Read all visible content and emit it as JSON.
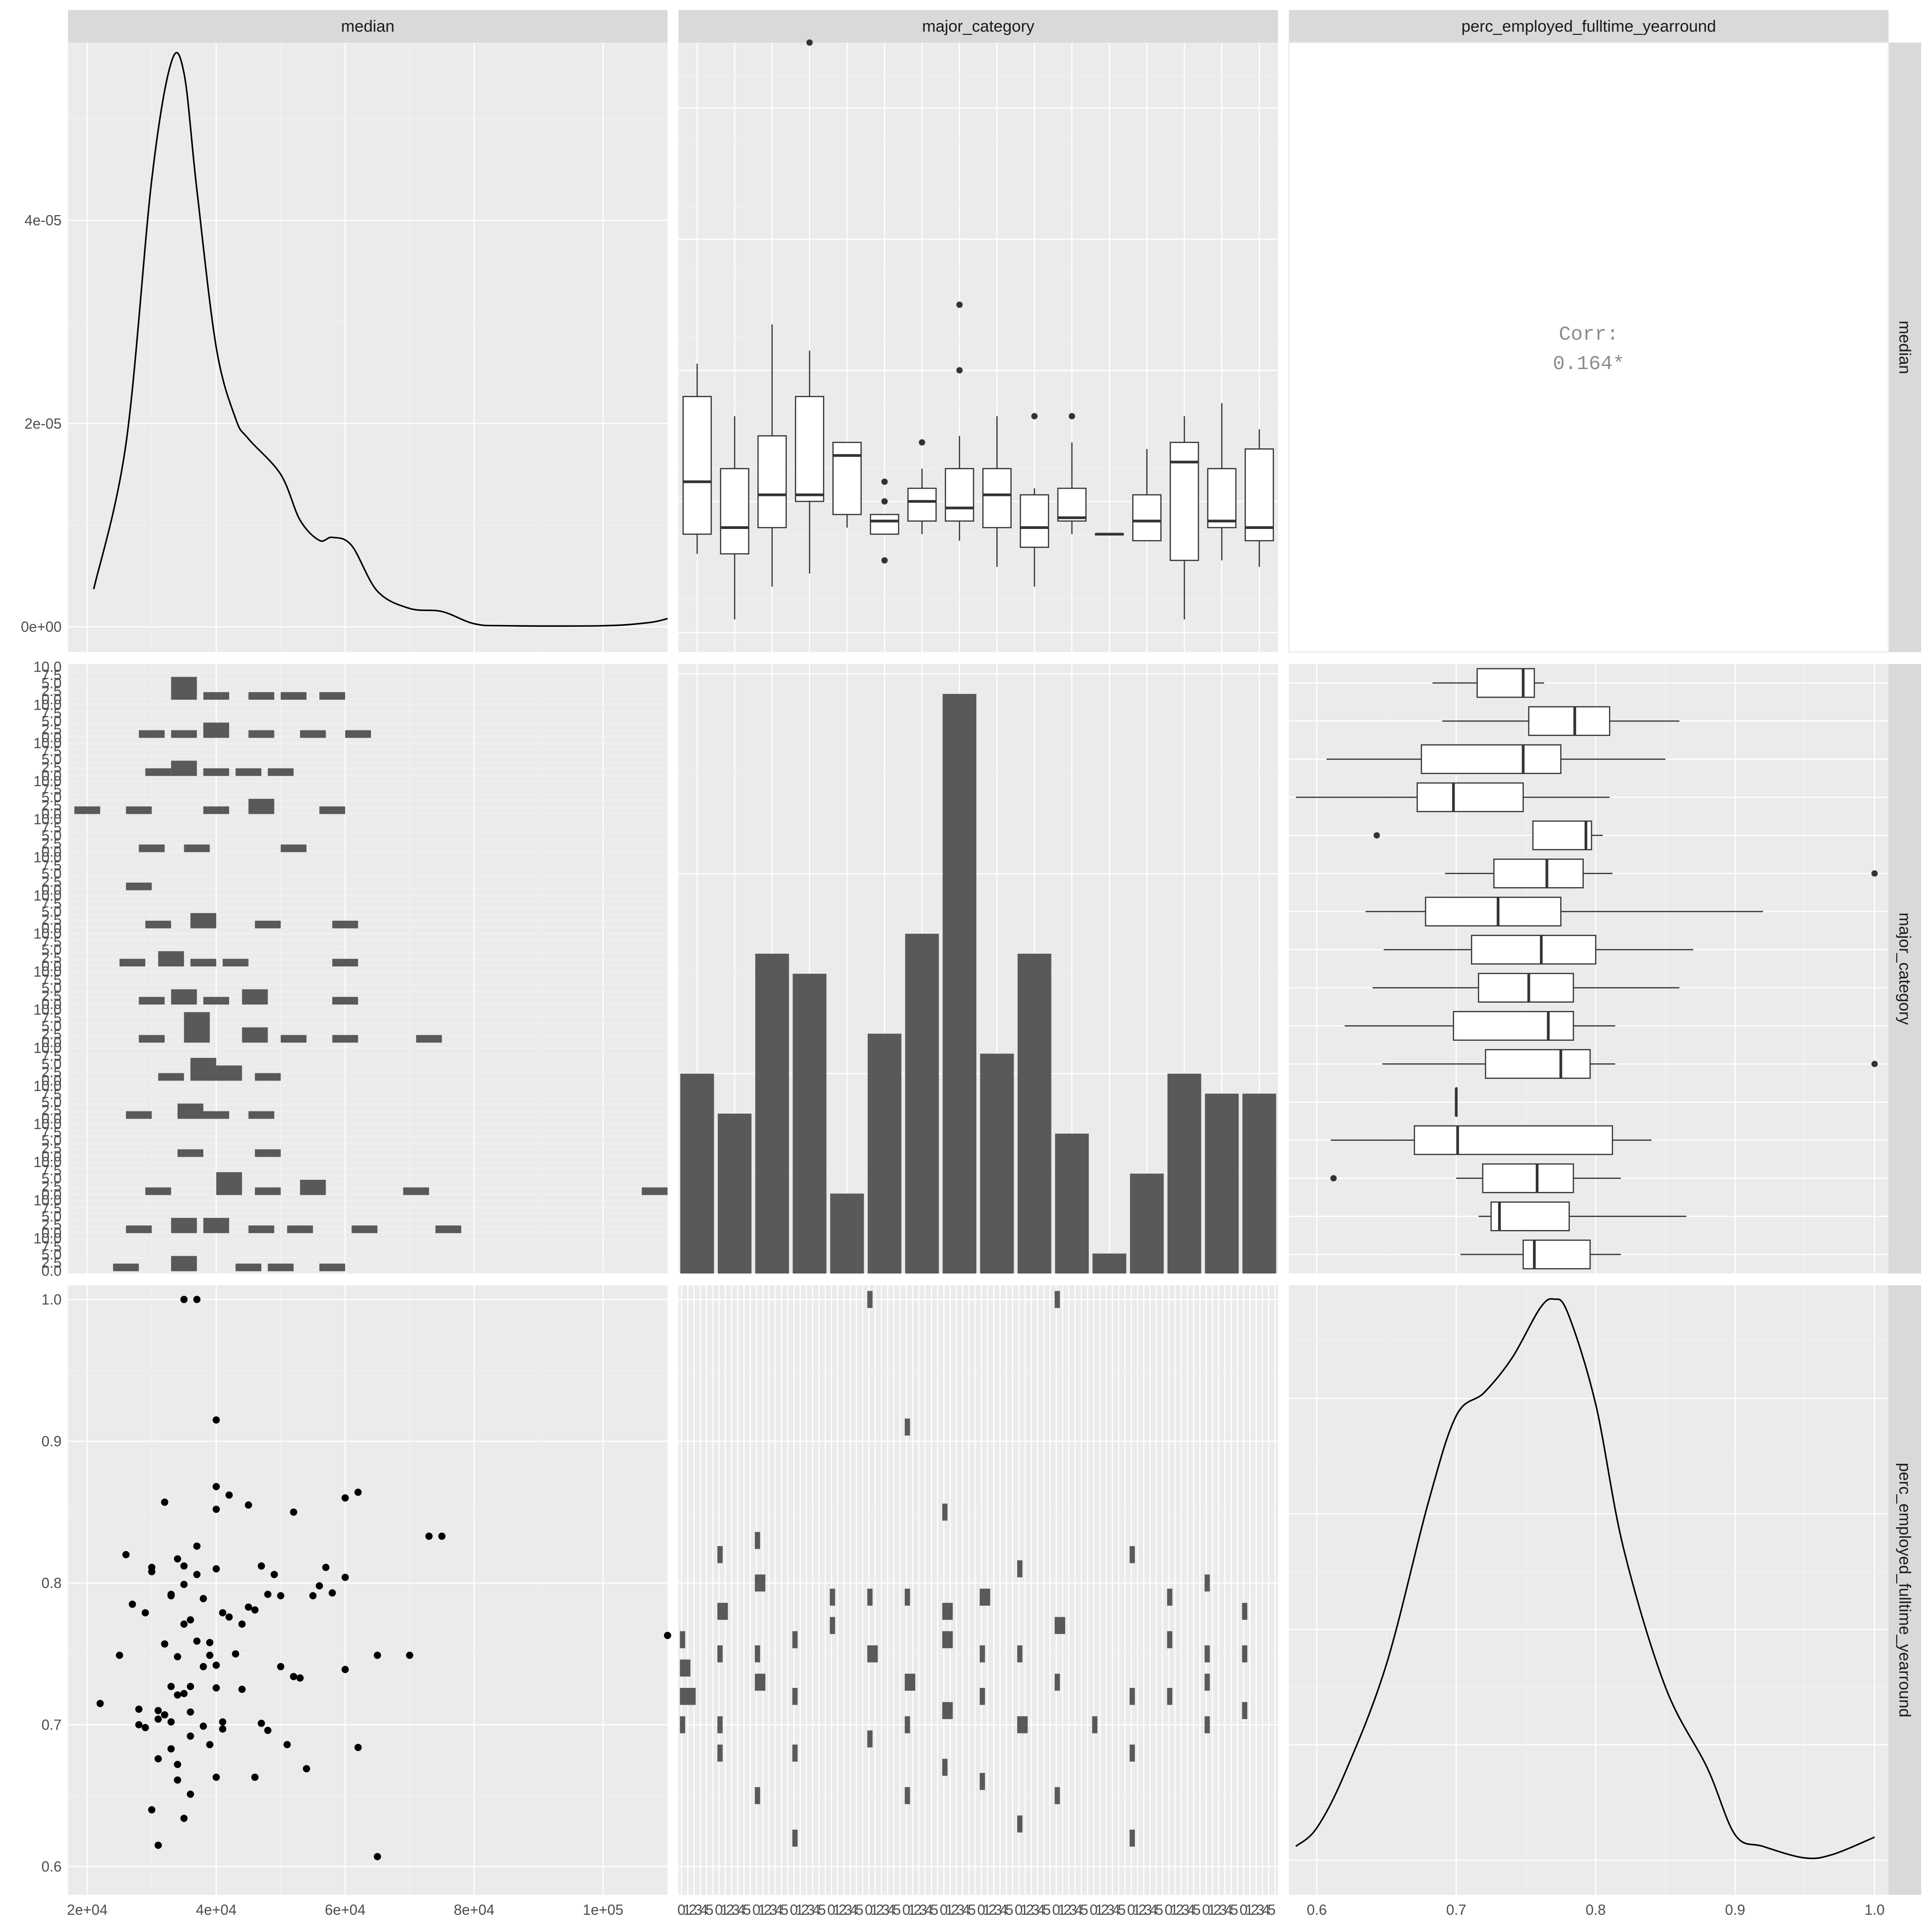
{
  "strips": {
    "top": [
      "median",
      "major_category",
      "perc_employed_fulltime_yearround"
    ],
    "right": [
      "median",
      "major_category",
      "perc_employed_fulltime_yearround"
    ]
  },
  "correlation": {
    "label": "Corr:",
    "value": "0.164*"
  },
  "axis": {
    "median_ticks": [
      "2e+04",
      "4e+04",
      "6e+04",
      "8e+04",
      "1e+05"
    ],
    "median_tick_values": [
      20000,
      40000,
      60000,
      80000,
      100000
    ],
    "median_range": [
      17000,
      110000
    ],
    "density_ticks": [
      "0e+00",
      "2e-05",
      "4e-05"
    ],
    "density_tick_values": [
      0,
      2e-05,
      4e-05
    ],
    "density_range": [
      -2.5e-06,
      5.75e-05
    ],
    "perc_ticks": [
      "0.6",
      "0.7",
      "0.8",
      "0.9",
      "1.0"
    ],
    "perc_tick_values": [
      0.6,
      0.7,
      0.8,
      0.9,
      1.0
    ],
    "perc_range": [
      0.58,
      1.01
    ],
    "facet_count_ticks": [
      "0.0",
      "2.5",
      "5.0",
      "7.5",
      "10.0"
    ],
    "facet_count_tick_values": [
      0,
      2.5,
      5,
      7.5,
      10
    ],
    "bottom_mid_tick_cycle": [
      "0",
      "1",
      "2",
      "3",
      "4",
      "5"
    ]
  },
  "chart_data": {
    "type": "pairs",
    "variables": [
      "median",
      "major_category",
      "perc_employed_fulltime_yearround"
    ],
    "n_categories": 16,
    "median_density": {
      "x": [
        21000,
        26000,
        30000,
        33000,
        35000,
        37000,
        40000,
        43000,
        45000,
        50000,
        53000,
        56000,
        58000,
        61000,
        65000,
        70000,
        75000,
        80000,
        85000,
        100000,
        107000,
        110000
      ],
      "y": [
        3.7e-06,
        1.8e-05,
        4.4e-05,
        5.55e-05,
        5.45e-05,
        4.3e-05,
        2.75e-05,
        2.05e-05,
        1.85e-05,
        1.5e-05,
        1.05e-05,
        8.5e-06,
        8.8e-06,
        8e-06,
        3.5e-06,
        1.8e-06,
        1.5e-06,
        3e-07,
        1e-07,
        1e-07,
        4e-07,
        8e-07
      ]
    },
    "perc_density": {
      "x": [
        0.585,
        0.6,
        0.62,
        0.65,
        0.68,
        0.7,
        0.72,
        0.74,
        0.76,
        0.77,
        0.78,
        0.8,
        0.82,
        0.85,
        0.88,
        0.9,
        0.92,
        0.95,
        0.97,
        1.0
      ],
      "y": [
        0.12,
        0.28,
        0.75,
        1.7,
        3.1,
        3.85,
        4.05,
        4.35,
        4.78,
        4.86,
        4.74,
        3.95,
        2.7,
        1.5,
        0.8,
        0.22,
        0.12,
        0.02,
        0.05,
        0.2
      ]
    },
    "perc_density_range": [
      -0.3,
      4.98
    ],
    "category_counts": [
      10,
      8,
      16,
      15,
      4,
      12,
      17,
      29,
      11,
      16,
      7,
      1,
      5,
      10,
      9,
      9
    ],
    "category_count_range": [
      0,
      30.5
    ],
    "median_by_category": [
      {
        "q1": 35000,
        "med": 43000,
        "q3": 56000,
        "lo": 32000,
        "hi": 61000,
        "out": []
      },
      {
        "q1": 32000,
        "med": 36000,
        "q3": 45000,
        "lo": 22000,
        "hi": 53000,
        "out": []
      },
      {
        "q1": 36000,
        "med": 41000,
        "q3": 50000,
        "lo": 27000,
        "hi": 67000,
        "out": []
      },
      {
        "q1": 40000,
        "med": 41000,
        "q3": 56000,
        "lo": 29000,
        "hi": 63000,
        "out": [
          110000
        ]
      },
      {
        "q1": 38000,
        "med": 47000,
        "q3": 49000,
        "lo": 36000,
        "hi": 49000,
        "out": []
      },
      {
        "q1": 35000,
        "med": 37000,
        "q3": 38000,
        "lo": 35000,
        "hi": 38000,
        "out": [
          40000,
          43000,
          31000
        ]
      },
      {
        "q1": 37000,
        "med": 40000,
        "q3": 42000,
        "lo": 35000,
        "hi": 45000,
        "out": [
          49000
        ]
      },
      {
        "q1": 37000,
        "med": 39000,
        "q3": 45000,
        "lo": 34000,
        "hi": 50000,
        "out": [
          70000,
          60000
        ]
      },
      {
        "q1": 36000,
        "med": 41000,
        "q3": 45000,
        "lo": 30000,
        "hi": 53000,
        "out": []
      },
      {
        "q1": 33000,
        "med": 36000,
        "q3": 41000,
        "lo": 27000,
        "hi": 42000,
        "out": [
          53000
        ]
      },
      {
        "q1": 37000,
        "med": 37500,
        "q3": 42000,
        "lo": 35000,
        "hi": 49000,
        "out": [
          53000
        ]
      },
      {
        "q1": 35000,
        "med": 35000,
        "q3": 35000,
        "lo": 35000,
        "hi": 35000,
        "out": []
      },
      {
        "q1": 34000,
        "med": 37000,
        "q3": 41000,
        "lo": 34000,
        "hi": 48000,
        "out": []
      },
      {
        "q1": 31000,
        "med": 46000,
        "q3": 49000,
        "lo": 22000,
        "hi": 53000,
        "out": []
      },
      {
        "q1": 36000,
        "med": 37000,
        "q3": 45000,
        "lo": 31000,
        "hi": 55000,
        "out": []
      },
      {
        "q1": 34000,
        "med": 36000,
        "q3": 48000,
        "lo": 30000,
        "hi": 51000,
        "out": []
      }
    ],
    "perc_by_category": [
      {
        "q1": 0.715,
        "med": 0.748,
        "q3": 0.756,
        "lo": 0.683,
        "hi": 0.763,
        "out": []
      },
      {
        "q1": 0.752,
        "med": 0.785,
        "q3": 0.81,
        "lo": 0.69,
        "hi": 0.86,
        "out": []
      },
      {
        "q1": 0.675,
        "med": 0.748,
        "q3": 0.775,
        "lo": 0.607,
        "hi": 0.85,
        "out": []
      },
      {
        "q1": 0.672,
        "med": 0.698,
        "q3": 0.748,
        "lo": 0.585,
        "hi": 0.81,
        "out": []
      },
      {
        "q1": 0.755,
        "med": 0.793,
        "q3": 0.797,
        "lo": 0.755,
        "hi": 0.805,
        "out": [
          0.643
        ]
      },
      {
        "q1": 0.727,
        "med": 0.765,
        "q3": 0.791,
        "lo": 0.692,
        "hi": 0.812,
        "out": [
          1.0
        ]
      },
      {
        "q1": 0.678,
        "med": 0.73,
        "q3": 0.775,
        "lo": 0.635,
        "hi": 0.92,
        "out": []
      },
      {
        "q1": 0.711,
        "med": 0.761,
        "q3": 0.8,
        "lo": 0.648,
        "hi": 0.87,
        "out": []
      },
      {
        "q1": 0.716,
        "med": 0.752,
        "q3": 0.784,
        "lo": 0.64,
        "hi": 0.86,
        "out": []
      },
      {
        "q1": 0.698,
        "med": 0.766,
        "q3": 0.784,
        "lo": 0.62,
        "hi": 0.814,
        "out": []
      },
      {
        "q1": 0.721,
        "med": 0.775,
        "q3": 0.796,
        "lo": 0.647,
        "hi": 0.814,
        "out": [
          1.0
        ]
      },
      {
        "q1": 0.7,
        "med": 0.7,
        "q3": 0.7,
        "lo": 0.7,
        "hi": 0.7,
        "out": []
      },
      {
        "q1": 0.67,
        "med": 0.701,
        "q3": 0.812,
        "lo": 0.61,
        "hi": 0.84,
        "out": []
      },
      {
        "q1": 0.719,
        "med": 0.758,
        "q3": 0.784,
        "lo": 0.7,
        "hi": 0.818,
        "out": [
          0.612
        ]
      },
      {
        "q1": 0.725,
        "med": 0.731,
        "q3": 0.781,
        "lo": 0.716,
        "hi": 0.865,
        "out": []
      },
      {
        "q1": 0.748,
        "med": 0.756,
        "q3": 0.796,
        "lo": 0.703,
        "hi": 0.818,
        "out": []
      }
    ],
    "median_hist_by_category": [
      [
        [
          35000,
          3
        ],
        [
          40000,
          1
        ],
        [
          47000,
          1
        ],
        [
          52000,
          1
        ],
        [
          58000,
          1
        ]
      ],
      [
        [
          30000,
          1
        ],
        [
          35000,
          1
        ],
        [
          40000,
          2
        ],
        [
          47000,
          1
        ],
        [
          55000,
          1
        ],
        [
          62000,
          1
        ]
      ],
      [
        [
          31000,
          1
        ],
        [
          35000,
          2
        ],
        [
          40000,
          1
        ],
        [
          45000,
          1
        ],
        [
          50000,
          1
        ]
      ],
      [
        [
          20000,
          1
        ],
        [
          28000,
          1
        ],
        [
          40000,
          1
        ],
        [
          47000,
          2
        ],
        [
          58000,
          1
        ]
      ],
      [
        [
          30000,
          1
        ],
        [
          37000,
          1
        ],
        [
          52000,
          1
        ]
      ],
      [
        [
          28000,
          1
        ]
      ],
      [
        [
          31000,
          1
        ],
        [
          38000,
          2
        ],
        [
          48000,
          1
        ],
        [
          60000,
          1
        ]
      ],
      [
        [
          27000,
          1
        ],
        [
          33000,
          2
        ],
        [
          38000,
          1
        ],
        [
          43000,
          1
        ],
        [
          60000,
          1
        ]
      ],
      [
        [
          30000,
          1
        ],
        [
          35000,
          2
        ],
        [
          40000,
          1
        ],
        [
          46000,
          2
        ],
        [
          60000,
          1
        ]
      ],
      [
        [
          30000,
          1
        ],
        [
          37000,
          4
        ],
        [
          46000,
          2
        ],
        [
          52000,
          1
        ],
        [
          60000,
          1
        ],
        [
          73000,
          1
        ]
      ],
      [
        [
          33000,
          1
        ],
        [
          38000,
          3
        ],
        [
          42000,
          2
        ],
        [
          48000,
          1
        ]
      ],
      [
        [
          28000,
          1
        ],
        [
          36000,
          2
        ],
        [
          40000,
          1
        ],
        [
          47000,
          1
        ]
      ],
      [
        [
          36000,
          1
        ],
        [
          48000,
          1
        ]
      ],
      [
        [
          31000,
          1
        ],
        [
          42000,
          3
        ],
        [
          48000,
          1
        ],
        [
          55000,
          2
        ],
        [
          71000,
          1
        ],
        [
          108000,
          1
        ]
      ],
      [
        [
          28000,
          1
        ],
        [
          35000,
          2
        ],
        [
          40000,
          2
        ],
        [
          47000,
          1
        ],
        [
          53000,
          1
        ],
        [
          63000,
          1
        ],
        [
          76000,
          1
        ]
      ],
      [
        [
          26000,
          1
        ],
        [
          35000,
          2
        ],
        [
          45000,
          1
        ],
        [
          50000,
          1
        ],
        [
          58000,
          1
        ]
      ]
    ],
    "perc_hist_by_category": [
      [
        [
          0.7,
          1
        ],
        [
          0.72,
          3
        ],
        [
          0.74,
          2
        ],
        [
          0.76,
          1
        ]
      ],
      [
        [
          0.68,
          1
        ],
        [
          0.7,
          1
        ],
        [
          0.75,
          1
        ],
        [
          0.78,
          2
        ],
        [
          0.82,
          1
        ]
      ],
      [
        [
          0.65,
          1
        ],
        [
          0.73,
          2
        ],
        [
          0.75,
          1
        ],
        [
          0.8,
          2
        ],
        [
          0.83,
          1
        ]
      ],
      [
        [
          0.62,
          1
        ],
        [
          0.68,
          1
        ],
        [
          0.72,
          1
        ],
        [
          0.76,
          1
        ]
      ],
      [
        [
          0.77,
          1
        ],
        [
          0.79,
          1
        ]
      ],
      [
        [
          0.69,
          1
        ],
        [
          0.75,
          2
        ],
        [
          0.79,
          1
        ],
        [
          1.0,
          1
        ]
      ],
      [
        [
          0.65,
          1
        ],
        [
          0.7,
          1
        ],
        [
          0.73,
          2
        ],
        [
          0.79,
          1
        ],
        [
          0.91,
          1
        ]
      ],
      [
        [
          0.67,
          1
        ],
        [
          0.71,
          2
        ],
        [
          0.76,
          2
        ],
        [
          0.78,
          2
        ],
        [
          0.85,
          1
        ]
      ],
      [
        [
          0.66,
          1
        ],
        [
          0.72,
          1
        ],
        [
          0.75,
          1
        ],
        [
          0.79,
          2
        ]
      ],
      [
        [
          0.63,
          1
        ],
        [
          0.7,
          2
        ],
        [
          0.75,
          1
        ],
        [
          0.81,
          1
        ]
      ],
      [
        [
          0.65,
          1
        ],
        [
          0.73,
          1
        ],
        [
          0.77,
          2
        ],
        [
          1.0,
          1
        ]
      ],
      [
        [
          0.7,
          1
        ]
      ],
      [
        [
          0.62,
          1
        ],
        [
          0.68,
          1
        ],
        [
          0.72,
          1
        ],
        [
          0.82,
          1
        ]
      ],
      [
        [
          0.72,
          1
        ],
        [
          0.76,
          1
        ],
        [
          0.79,
          1
        ]
      ],
      [
        [
          0.7,
          1
        ],
        [
          0.73,
          1
        ],
        [
          0.75,
          1
        ],
        [
          0.8,
          1
        ]
      ],
      [
        [
          0.71,
          1
        ],
        [
          0.75,
          1
        ],
        [
          0.78,
          1
        ]
      ]
    ],
    "scatter": {
      "x": [
        22000,
        25000,
        27000,
        28000,
        29000,
        30000,
        30000,
        31000,
        31000,
        32000,
        32000,
        33000,
        33000,
        33000,
        34000,
        34000,
        34000,
        35000,
        35000,
        35000,
        35000,
        36000,
        36000,
        36000,
        37000,
        37000,
        37000,
        38000,
        38000,
        39000,
        39000,
        40000,
        40000,
        40000,
        40000,
        40000,
        40000,
        41000,
        41000,
        42000,
        43000,
        44000,
        45000,
        45000,
        46000,
        47000,
        47000,
        48000,
        49000,
        50000,
        50000,
        51000,
        52000,
        53000,
        54000,
        55000,
        56000,
        57000,
        58000,
        60000,
        60000,
        60000,
        62000,
        62000,
        65000,
        65000,
        70000,
        73000,
        75000,
        110000,
        35000,
        37000,
        26000,
        29000,
        31000,
        32000,
        34000,
        36000,
        38000,
        33000,
        35000,
        30000,
        28000,
        40000,
        42000,
        44000,
        46000,
        48000,
        52000,
        36000,
        34000,
        31000,
        33000,
        39000,
        41000
      ],
      "y": [
        0.715,
        0.749,
        0.785,
        0.7,
        0.779,
        0.64,
        0.811,
        0.704,
        0.615,
        0.757,
        0.857,
        0.727,
        0.791,
        0.683,
        0.748,
        0.817,
        0.661,
        1.0,
        0.799,
        0.634,
        0.722,
        0.774,
        0.709,
        0.651,
        1.0,
        0.826,
        0.759,
        0.699,
        0.789,
        0.758,
        0.686,
        0.915,
        0.868,
        0.852,
        0.81,
        0.742,
        0.663,
        0.779,
        0.697,
        0.862,
        0.75,
        0.725,
        0.855,
        0.783,
        0.663,
        0.812,
        0.701,
        0.792,
        0.806,
        0.791,
        0.741,
        0.686,
        0.85,
        0.733,
        0.669,
        0.791,
        0.798,
        0.811,
        0.793,
        0.86,
        0.804,
        0.739,
        0.864,
        0.684,
        0.749,
        0.607,
        0.749,
        0.833,
        0.833,
        0.763,
        0.812,
        0.806,
        0.82,
        0.698,
        0.676,
        0.707,
        0.721,
        0.727,
        0.741,
        0.792,
        0.771,
        0.808,
        0.711,
        0.726,
        0.776,
        0.771,
        0.781,
        0.696,
        0.734,
        0.692,
        0.672,
        0.71,
        0.702,
        0.749,
        0.702
      ]
    }
  }
}
